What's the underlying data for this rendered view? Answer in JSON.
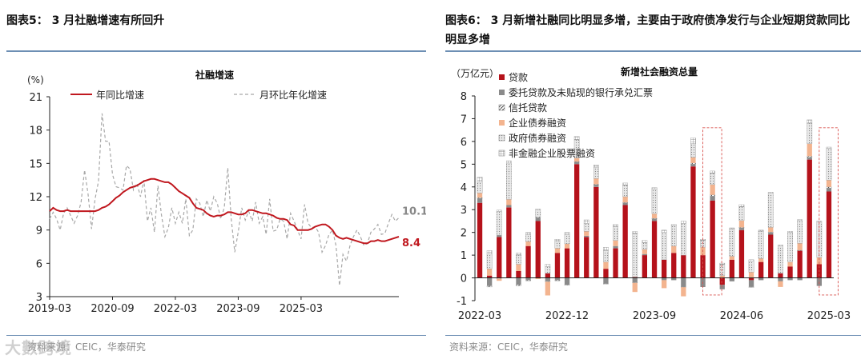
{
  "left": {
    "figure_title": "图表5：  3 月社融增速有所回升",
    "source": "资料来源：CEIC，华泰研究",
    "chart_data": {
      "type": "line",
      "title": "社融增速",
      "ylabel": "(%)",
      "ylim": [
        3,
        21
      ],
      "yticks": [
        3,
        6,
        9,
        12,
        15,
        18,
        21
      ],
      "xtick_labels": [
        "2019-03",
        "2020-09",
        "2022-03",
        "2023-09",
        "2025-03"
      ],
      "x_start": "2019-03",
      "x_end": "2025-03",
      "grid": false,
      "legend_position": "top",
      "series": [
        {
          "name": "年同比增速",
          "color": "#c0181f",
          "style": "solid",
          "end_label": "8.4",
          "values": [
            10.7,
            11.0,
            10.8,
            10.7,
            10.7,
            10.8,
            10.7,
            10.7,
            10.7,
            10.7,
            10.7,
            10.7,
            10.7,
            10.7,
            10.8,
            11.0,
            11.1,
            11.3,
            11.6,
            11.9,
            12.1,
            12.4,
            12.6,
            12.8,
            12.9,
            13.0,
            13.2,
            13.4,
            13.5,
            13.6,
            13.6,
            13.5,
            13.4,
            13.3,
            13.3,
            13.1,
            12.8,
            12.5,
            12.3,
            12.1,
            11.9,
            11.4,
            11.0,
            10.9,
            10.8,
            10.5,
            10.3,
            10.2,
            10.3,
            10.3,
            10.4,
            10.6,
            10.6,
            10.5,
            10.4,
            10.4,
            10.5,
            10.8,
            10.8,
            10.7,
            10.6,
            10.5,
            10.5,
            10.4,
            10.3,
            10.1,
            10.0,
            10.0,
            9.9,
            9.5,
            9.4,
            9.0,
            9.0,
            9.0,
            9.0,
            9.1,
            9.3,
            9.4,
            9.5,
            9.5,
            9.3,
            9.0,
            8.5,
            8.3,
            8.2,
            8.3,
            8.2,
            8.1,
            8.0,
            7.9,
            7.8,
            7.8,
            8.0,
            8.0,
            8.1,
            8.0,
            8.0,
            8.1,
            8.2,
            8.3,
            8.4
          ]
        },
        {
          "name": "月环比年化增速",
          "color": "#a8a8a8",
          "style": "dashed",
          "end_label": "10.1",
          "values": [
            10.0,
            10.6,
            10.0,
            9.0,
            10.5,
            11.0,
            10.3,
            9.6,
            10.3,
            11.5,
            14.4,
            12.2,
            9.1,
            11.8,
            13.4,
            19.5,
            17.0,
            17.0,
            14.0,
            12.9,
            12.8,
            12.6,
            14.8,
            14.5,
            12.6,
            13.2,
            12.0,
            13.5,
            9.8,
            11.0,
            8.8,
            13.0,
            10.4,
            8.4,
            9.2,
            11.0,
            9.6,
            10.6,
            9.6,
            11.8,
            8.5,
            9.0,
            11.8,
            11.4,
            10.2,
            11.7,
            10.7,
            12.0,
            11.4,
            10.0,
            11.0,
            14.6,
            10.0,
            7.0,
            8.8,
            11.0,
            9.9,
            10.7,
            9.8,
            11.5,
            9.6,
            10.2,
            8.6,
            11.8,
            8.9,
            9.0,
            10.0,
            9.8,
            8.2,
            10.5,
            9.8,
            9.0,
            8.2,
            11.3,
            9.6,
            9.2,
            9.3,
            8.8,
            7.0,
            7.6,
            8.6,
            9.0,
            7.6,
            4.0,
            6.8,
            6.2,
            7.6,
            8.4,
            9.0,
            8.4,
            7.6,
            7.8,
            8.8,
            9.1,
            9.5,
            8.6,
            8.7,
            9.6,
            10.4,
            9.8,
            10.1
          ]
        }
      ]
    }
  },
  "right": {
    "figure_title": "图表6：  3 月新增社融同比明显多增，主要由于政府债净发行与企业短期贷款同比明显多增",
    "source": "资料来源：CEIC，华泰研究",
    "chart_data": {
      "type": "bar",
      "stacked": true,
      "title": "新增社会融资总量",
      "ylabel": "（万亿元）",
      "ylim": [
        -1,
        8
      ],
      "yticks": [
        -1,
        0,
        1,
        2,
        3,
        4,
        5,
        6,
        7,
        8
      ],
      "grid": false,
      "legend_position": "top-left",
      "categories": [
        "2022-03",
        "2022-04",
        "2022-05",
        "2022-06",
        "2022-07",
        "2022-08",
        "2022-09",
        "2022-10",
        "2022-11",
        "2022-12",
        "2023-01",
        "2023-02",
        "2023-03",
        "2023-04",
        "2023-05",
        "2023-06",
        "2023-07",
        "2023-08",
        "2023-09",
        "2023-10",
        "2023-11",
        "2023-12",
        "2024-01",
        "2024-02",
        "2024-03",
        "2024-04",
        "2024-05",
        "2024-06",
        "2024-07",
        "2024-08",
        "2024-09",
        "2024-10",
        "2024-11",
        "2024-12",
        "2025-01",
        "2025-02",
        "2025-03"
      ],
      "xtick_labels": [
        "2022-03",
        "2022-12",
        "2023-09",
        "2024-06",
        "2025-03"
      ],
      "highlighted_categories": [
        "2024-03",
        "2025-03"
      ],
      "series": [
        {
          "name": "贷款",
          "color": "#b5121b",
          "pattern": "solid",
          "values": [
            3.3,
            0.1,
            1.8,
            3.1,
            0.3,
            1.4,
            2.5,
            0.2,
            1.1,
            1.3,
            5.0,
            1.8,
            4.0,
            0.4,
            1.3,
            3.2,
            0.04,
            1.0,
            2.5,
            0.8,
            1.1,
            1.0,
            4.9,
            1.0,
            3.4,
            -0.3,
            0.8,
            2.1,
            -0.1,
            0.7,
            1.9,
            0.2,
            0.5,
            1.2,
            5.2,
            0.6,
            3.8
          ]
        },
        {
          "name": "委托贷款及未贴现的银行承兑汇票",
          "color": "#8a8a8a",
          "pattern": "solid",
          "values": [
            0.2,
            -0.35,
            0.08,
            0.1,
            -0.3,
            -0.1,
            0.15,
            -0.15,
            -0.1,
            -0.3,
            0.1,
            0.05,
            0.1,
            -0.25,
            0.1,
            0.1,
            -0.2,
            0.05,
            0.1,
            -0.1,
            -0.1,
            -0.4,
            0.1,
            -0.4,
            0.2,
            -0.2,
            -0.15,
            0.1,
            -0.3,
            -0.1,
            0.1,
            -0.15,
            -0.1,
            -0.1,
            0.1,
            -0.35,
            0.15
          ]
        },
        {
          "name": "信托贷款",
          "color": "#444444",
          "pattern": "hatch",
          "values": [
            0.03,
            -0.05,
            -0.03,
            0.0,
            -0.05,
            -0.03,
            0.03,
            -0.02,
            -0.03,
            -0.02,
            0.02,
            0.0,
            0.02,
            -0.02,
            0.0,
            0.02,
            -0.02,
            0.0,
            0.02,
            0.0,
            0.0,
            -0.01,
            0.05,
            0.0,
            0.05,
            0.0,
            0.0,
            0.02,
            -0.01,
            0.0,
            0.02,
            0.0,
            0.0,
            0.02,
            0.05,
            0.0,
            0.05
          ]
        },
        {
          "name": "企业债券融资",
          "color": "#f3b48f",
          "pattern": "solid",
          "values": [
            0.2,
            0.3,
            -0.1,
            0.25,
            0.3,
            0.2,
            -0.05,
            -0.6,
            0.2,
            0.2,
            0.15,
            0.2,
            0.25,
            0.3,
            0.25,
            0.25,
            -0.4,
            0.2,
            0.2,
            -0.35,
            0.3,
            -0.4,
            0.25,
            0.35,
            0.45,
            0.1,
            0.15,
            0.3,
            0.25,
            0.15,
            0.2,
            -0.25,
            0.2,
            0.3,
            0.55,
            0.3,
            0.3
          ]
        },
        {
          "name": "政府债券融资",
          "color": "#cfcfcf",
          "pattern": "dots",
          "values": [
            0.5,
            0.65,
            1.05,
            1.6,
            0.4,
            0.3,
            0.3,
            0.3,
            0.3,
            0.4,
            0.8,
            0.35,
            0.5,
            0.5,
            0.6,
            0.5,
            1.9,
            0.3,
            1.1,
            1.2,
            0.9,
            1.4,
            0.6,
            0.3,
            0.5,
            0.5,
            1.2,
            0.6,
            0.5,
            1.2,
            1.5,
            1.2,
            1.3,
            1.0,
            0.9,
            1.55,
            1.4
          ]
        },
        {
          "name": "非金融企业股票融资",
          "color": "#9a9a9a",
          "pattern": "grid",
          "values": [
            0.2,
            0.15,
            0.05,
            0.1,
            0.1,
            0.1,
            0.05,
            0.1,
            0.1,
            0.1,
            0.15,
            0.15,
            0.1,
            0.15,
            0.1,
            0.1,
            0.1,
            0.1,
            0.05,
            0.1,
            0.05,
            0.1,
            0.25,
            0.05,
            0.1,
            0.05,
            0.05,
            0.1,
            0.05,
            0.05,
            0.05,
            0.05,
            0.05,
            0.05,
            0.15,
            0.05,
            0.05
          ]
        }
      ]
    }
  },
  "watermark": "大數跨境",
  "colors": {
    "rule": "#6d8fb4",
    "loan_red": "#b5121b",
    "highlight_box": "#d9534f"
  }
}
